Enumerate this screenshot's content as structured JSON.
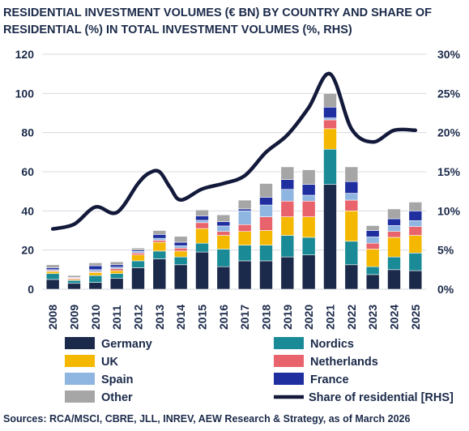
{
  "chart_data": {
    "type": "bar",
    "title_lines": [
      "RESIDENTIAL INVESTMENT VOLUMES (€ BN) BY COUNTRY AND SHARE OF",
      "RESIDENTIAL (%) IN TOTAL INVESTMENT VOLUMES (%, RHS)"
    ],
    "categories": [
      "2008",
      "2009",
      "2010",
      "2011",
      "2012",
      "2013",
      "2014",
      "2015",
      "2016",
      "2017",
      "2018",
      "2019",
      "2020",
      "2021",
      "2022",
      "2023",
      "2024",
      "2025"
    ],
    "stacked": true,
    "ylim": [
      0,
      120
    ],
    "yticks": [
      0,
      20,
      40,
      60,
      80,
      100,
      120
    ],
    "y2lim": [
      0,
      30
    ],
    "y2ticks": [
      "0%",
      "5%",
      "10%",
      "15%",
      "20%",
      "25%",
      "30%"
    ],
    "grid": true,
    "legend_position": "bottom",
    "series": [
      {
        "name": "Germany",
        "color": "#1b2a4a",
        "values": [
          5,
          3,
          3.5,
          5.5,
          11,
          15.5,
          12.5,
          19,
          11.5,
          14.5,
          14.5,
          16.5,
          17.5,
          53.5,
          12.5,
          7.5,
          10,
          9.5
        ]
      },
      {
        "name": "Nordics",
        "color": "#1a8a96",
        "values": [
          3,
          1.5,
          3.5,
          2.5,
          3.5,
          4,
          4,
          4.5,
          9,
          8,
          8,
          11,
          9,
          18,
          12,
          4,
          6.5,
          9
        ]
      },
      {
        "name": "UK",
        "color": "#f5b800",
        "values": [
          1,
          0.5,
          1.5,
          1.5,
          3,
          4.5,
          3,
          7.5,
          7,
          7,
          7.5,
          9.5,
          10.5,
          10.5,
          15.5,
          9,
          10,
          9
        ]
      },
      {
        "name": "Netherlands",
        "color": "#e8636b",
        "values": [
          0.5,
          0.5,
          0.5,
          1,
          1,
          1,
          1.5,
          3,
          2,
          3.5,
          7,
          8,
          8,
          4.5,
          5.5,
          3,
          3,
          4.5
        ]
      },
      {
        "name": "Spain",
        "color": "#8fb6e0",
        "values": [
          0.5,
          0.2,
          1,
          0.8,
          0.8,
          1,
          1.2,
          1.2,
          2.8,
          7,
          6,
          6,
          3,
          1,
          3.5,
          3.2,
          3,
          3
        ]
      },
      {
        "name": "France",
        "color": "#1f2fa0",
        "values": [
          1,
          0.3,
          2,
          1.2,
          0.7,
          2,
          1.8,
          2.3,
          2.2,
          1,
          4,
          5,
          5.5,
          5.5,
          6,
          3.3,
          3.5,
          5
        ]
      },
      {
        "name": "Other",
        "color": "#a6a6a6",
        "values": [
          1.5,
          1,
          1.5,
          1.5,
          1,
          2,
          3,
          3,
          3.5,
          4.5,
          7,
          6.5,
          7.5,
          7,
          7.5,
          2.5,
          5,
          4.5
        ]
      }
    ],
    "line_series": {
      "name": "Share of residential [RHS]",
      "color": "#13193a",
      "axis": "right",
      "x": [
        2008,
        2009,
        2010,
        2011,
        2012,
        2012.5,
        2013,
        2013.5,
        2014,
        2015,
        2016,
        2017,
        2018,
        2019,
        2020,
        2021,
        2022,
        2023,
        2024,
        2025
      ],
      "values": [
        7.7,
        8.3,
        10.5,
        9.8,
        13.5,
        14.8,
        15.0,
        13.0,
        11.4,
        12.8,
        13.5,
        14.5,
        17.5,
        19.7,
        23.2,
        27.5,
        20.5,
        18.8,
        20.3,
        20.3
      ]
    },
    "source_note": "Sources: RCA/MSCI, CBRE, JLL, INREV, AEW Research & Strategy, as of March 2026"
  }
}
